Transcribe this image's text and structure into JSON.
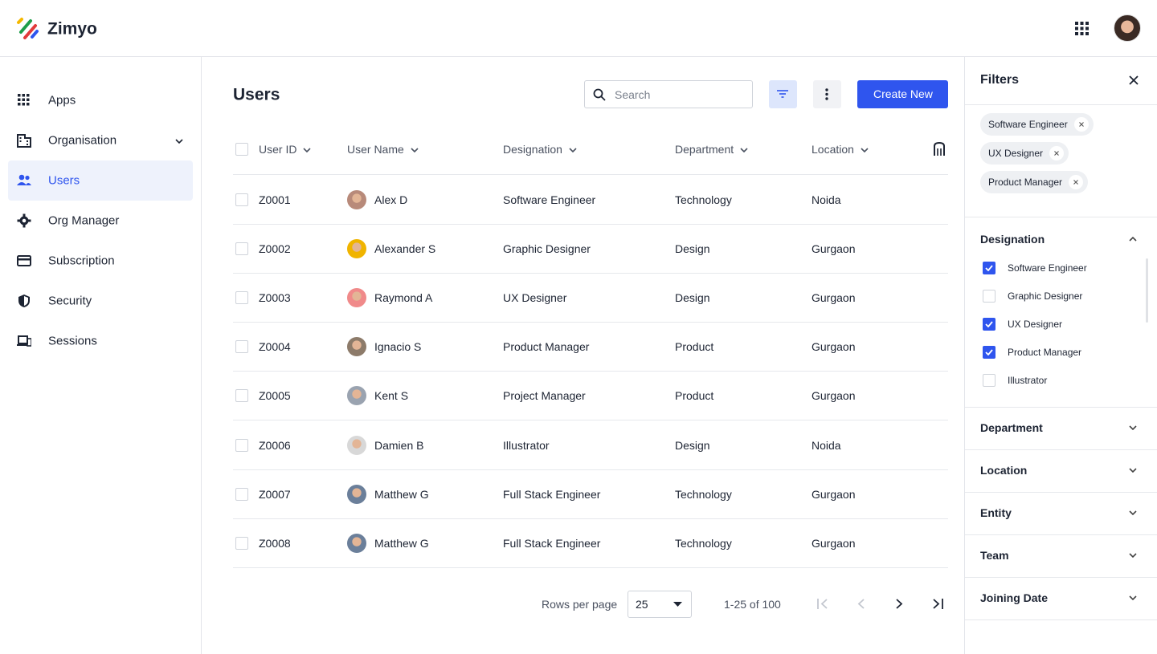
{
  "header": {
    "brand": "Zimyo"
  },
  "sidebar": {
    "items": [
      "Apps",
      "Organisation",
      "Users",
      "Org Manager",
      "Subscription",
      "Security",
      "Sessions"
    ],
    "active": 2
  },
  "main": {
    "title": "Users",
    "search_placeholder": "Search",
    "create_button": "Create New",
    "table": {
      "columns": [
        "User ID",
        "User Name",
        "Designation",
        "Department",
        "Location"
      ],
      "rows": [
        [
          "Z0001",
          "Alex D",
          "Software Engineer",
          "Technology",
          "Noida"
        ],
        [
          "Z0002",
          "Alexander S",
          "Graphic Designer",
          "Design",
          "Gurgaon"
        ],
        [
          "Z0003",
          "Raymond A",
          "UX Designer",
          "Design",
          "Gurgaon"
        ],
        [
          "Z0004",
          "Ignacio S",
          "Product Manager",
          "Product",
          "Gurgaon"
        ],
        [
          "Z0005",
          "Kent S",
          "Project Manager",
          "Product",
          "Gurgaon"
        ],
        [
          "Z0006",
          "Damien B",
          "Illustrator",
          "Design",
          "Noida"
        ],
        [
          "Z0007",
          "Matthew G",
          "Full Stack Engineer",
          "Technology",
          "Gurgaon"
        ],
        [
          "Z0008",
          "Matthew G",
          "Full Stack Engineer",
          "Technology",
          "Gurgaon"
        ]
      ]
    },
    "pagination": {
      "rows_per_page_label": "Rows per page",
      "rows_per_page": "25",
      "range": "1-25 of 100"
    }
  },
  "filters": {
    "title": "Filters",
    "chips": [
      "Software Engineer",
      "UX Designer",
      "Product Manager"
    ],
    "designation": {
      "title": "Designation",
      "options": [
        {
          "label": "Software Engineer",
          "checked": true
        },
        {
          "label": "Graphic Designer",
          "checked": false
        },
        {
          "label": "UX Designer",
          "checked": true
        },
        {
          "label": "Product Manager",
          "checked": true
        },
        {
          "label": "Illustrator",
          "checked": false
        }
      ]
    },
    "sections": [
      "Department",
      "Location",
      "Entity",
      "Team",
      "Joining Date"
    ]
  }
}
